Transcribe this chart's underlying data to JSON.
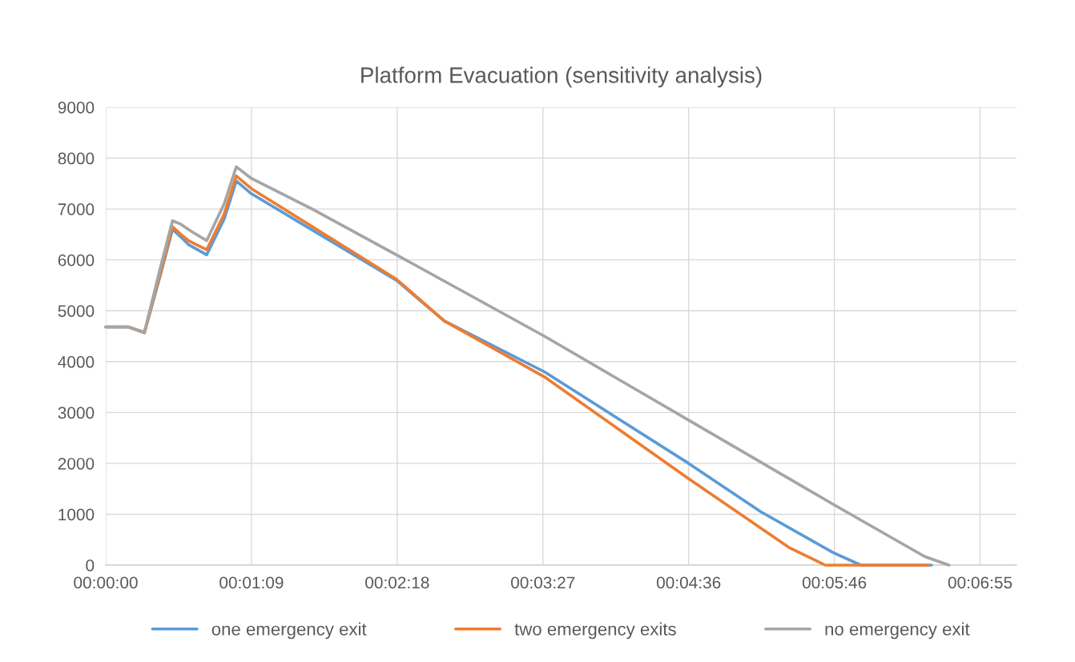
{
  "chart_data": {
    "type": "line",
    "title": "Platform Evacuation (sensitivity analysis)",
    "xlim": [
      0,
      0.12
    ],
    "xticks": [
      {
        "value": 0,
        "label": "00:00:00"
      },
      {
        "value": 0.0192,
        "label": "00:01:09"
      },
      {
        "value": 0.0384,
        "label": "00:02:18"
      },
      {
        "value": 0.0576,
        "label": "00:03:27"
      },
      {
        "value": 0.0768,
        "label": "00:04:36"
      },
      {
        "value": 0.096,
        "label": "00:05:46"
      },
      {
        "value": 0.1152,
        "label": "00:06:55"
      }
    ],
    "ylim": [
      0,
      9000
    ],
    "yticks": [
      0,
      1000,
      2000,
      3000,
      4000,
      5000,
      6000,
      7000,
      8000,
      9000
    ],
    "grid": true,
    "legend": "bottom",
    "marker": "none",
    "line_style": "solid",
    "series": [
      {
        "name": "one emergency exit",
        "color": "#5b9bd5",
        "x": [
          0,
          0.003,
          0.0051,
          0.0072,
          0.0088,
          0.0099,
          0.0109,
          0.0133,
          0.0156,
          0.0172,
          0.0192,
          0.0383,
          0.0446,
          0.0578,
          0.0768,
          0.0863,
          0.0958,
          0.0995,
          0.1088
        ],
        "values": [
          4680,
          4680,
          4570,
          5700,
          6600,
          6450,
          6300,
          6100,
          6800,
          7550,
          7300,
          5600,
          4800,
          3800,
          2000,
          1050,
          250,
          0,
          0
        ]
      },
      {
        "name": "two emergency exits",
        "color": "#ed7d31",
        "x": [
          0,
          0.003,
          0.0051,
          0.0072,
          0.0088,
          0.0099,
          0.0109,
          0.0133,
          0.0156,
          0.0172,
          0.0192,
          0.0383,
          0.0446,
          0.0578,
          0.0768,
          0.09,
          0.0948,
          0.1084
        ],
        "values": [
          4680,
          4680,
          4570,
          5750,
          6650,
          6500,
          6380,
          6200,
          6900,
          7650,
          7400,
          5620,
          4800,
          3700,
          1700,
          350,
          0,
          0
        ]
      },
      {
        "name": "no emergency exit",
        "color": "#a5a5a5",
        "x": [
          0,
          0.003,
          0.0051,
          0.0072,
          0.0088,
          0.0099,
          0.0114,
          0.0133,
          0.0156,
          0.0172,
          0.0192,
          0.0272,
          0.0383,
          0.0578,
          0.0768,
          0.0958,
          0.1079,
          0.1111
        ],
        "values": [
          4680,
          4680,
          4580,
          5850,
          6770,
          6700,
          6550,
          6380,
          7100,
          7830,
          7600,
          7000,
          6100,
          4500,
          2850,
          1200,
          170,
          0
        ]
      }
    ]
  }
}
